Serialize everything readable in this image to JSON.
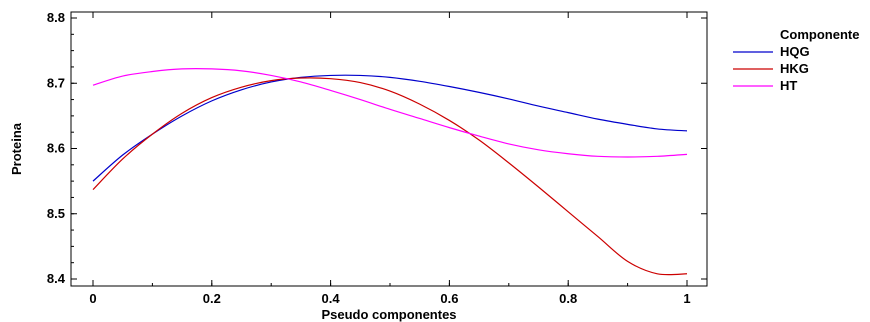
{
  "chart_data": {
    "type": "line",
    "title": "",
    "xlabel": "Pseudo componentes",
    "ylabel": "Proteina",
    "xlim": [
      0,
      1
    ],
    "ylim": [
      8.4,
      8.8
    ],
    "x_ticks": [
      "0",
      "0.2",
      "0.4",
      "0.6",
      "0.8",
      "1"
    ],
    "y_ticks": [
      "8.4",
      "8.5",
      "8.6",
      "8.7",
      "8.8"
    ],
    "grid": false,
    "legend": {
      "title": "Componente",
      "placement": "right"
    },
    "x": [
      0,
      0.05,
      0.1,
      0.15,
      0.2,
      0.25,
      0.3,
      0.35,
      0.4,
      0.45,
      0.5,
      0.55,
      0.6,
      0.65,
      0.7,
      0.75,
      0.8,
      0.85,
      0.9,
      0.95,
      1
    ],
    "series": [
      {
        "name": "HQG",
        "color": "#0000cc",
        "values": [
          8.55,
          8.59,
          8.622,
          8.65,
          8.673,
          8.69,
          8.702,
          8.709,
          8.712,
          8.712,
          8.709,
          8.703,
          8.695,
          8.686,
          8.676,
          8.665,
          8.655,
          8.645,
          8.637,
          8.63,
          8.627
        ]
      },
      {
        "name": "HKG",
        "color": "#cc0000",
        "values": [
          8.537,
          8.584,
          8.622,
          8.654,
          8.678,
          8.694,
          8.704,
          8.708,
          8.707,
          8.701,
          8.688,
          8.668,
          8.643,
          8.613,
          8.578,
          8.541,
          8.503,
          8.465,
          8.427,
          8.408,
          8.408
        ]
      },
      {
        "name": "HT",
        "color": "#ff00ff",
        "values": [
          8.697,
          8.711,
          8.718,
          8.722,
          8.722,
          8.719,
          8.712,
          8.702,
          8.689,
          8.675,
          8.66,
          8.646,
          8.632,
          8.619,
          8.607,
          8.598,
          8.592,
          8.588,
          8.587,
          8.588,
          8.591
        ]
      }
    ]
  }
}
